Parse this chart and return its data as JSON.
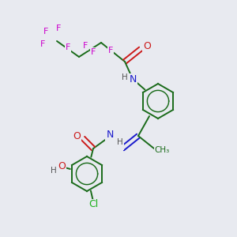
{
  "background_color": "#e8eaf0",
  "atom_colors": {
    "C": "#1a6b1a",
    "N": "#1a1acc",
    "O": "#cc1a1a",
    "F": "#cc00cc",
    "Cl": "#1ab01a",
    "H": "#555555"
  },
  "bond_color": "#1a6b1a",
  "figsize": [
    3.0,
    3.0
  ],
  "dpi": 100
}
